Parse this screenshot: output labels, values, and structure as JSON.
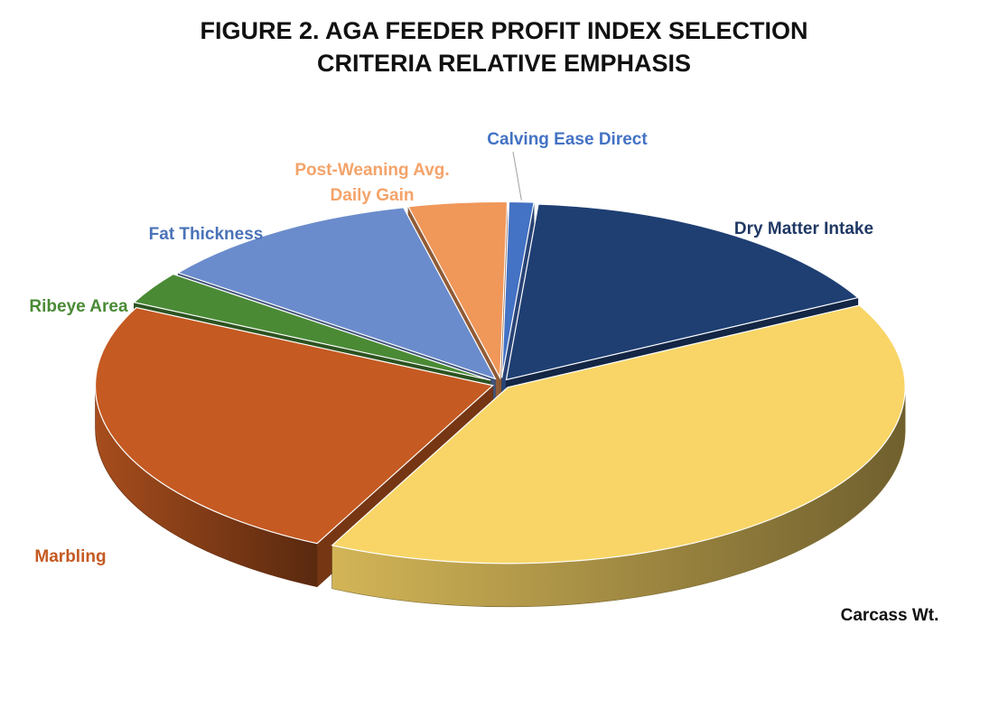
{
  "chart_data": {
    "type": "pie",
    "title_lines": [
      "FIGURE 2. AGA FEEDER PROFIT INDEX SELECTION",
      "CRITERIA RELATIVE EMPHASIS"
    ],
    "slices": [
      {
        "label": "Calving Ease Direct",
        "value": 1,
        "color": "#4472c4",
        "label_color": "#4472c4"
      },
      {
        "label": "Dry Matter Intake",
        "value": 16,
        "color": "#1f3f73",
        "label_color": "#1f3864"
      },
      {
        "label": "Carcass Wt.",
        "value": 40,
        "color": "#f8d566",
        "label_color": "#111111"
      },
      {
        "label": "Marbling",
        "value": 25,
        "color": "#c55a22",
        "label_color": "#c55a22"
      },
      {
        "label": "Ribeye Area",
        "value": 3,
        "color": "#4a8a35",
        "label_color": "#4a8a35"
      },
      {
        "label": "Fat Thickness",
        "value": 11,
        "color": "#6b8ccc",
        "label_color": "#4a72b8"
      },
      {
        "label": "Post-Weaning Avg. Daily Gain",
        "label_lines": [
          "Post-Weaning Avg.",
          "Daily Gain"
        ],
        "value": 4,
        "color": "#f0975a",
        "label_color": "#f4a36a"
      }
    ]
  }
}
